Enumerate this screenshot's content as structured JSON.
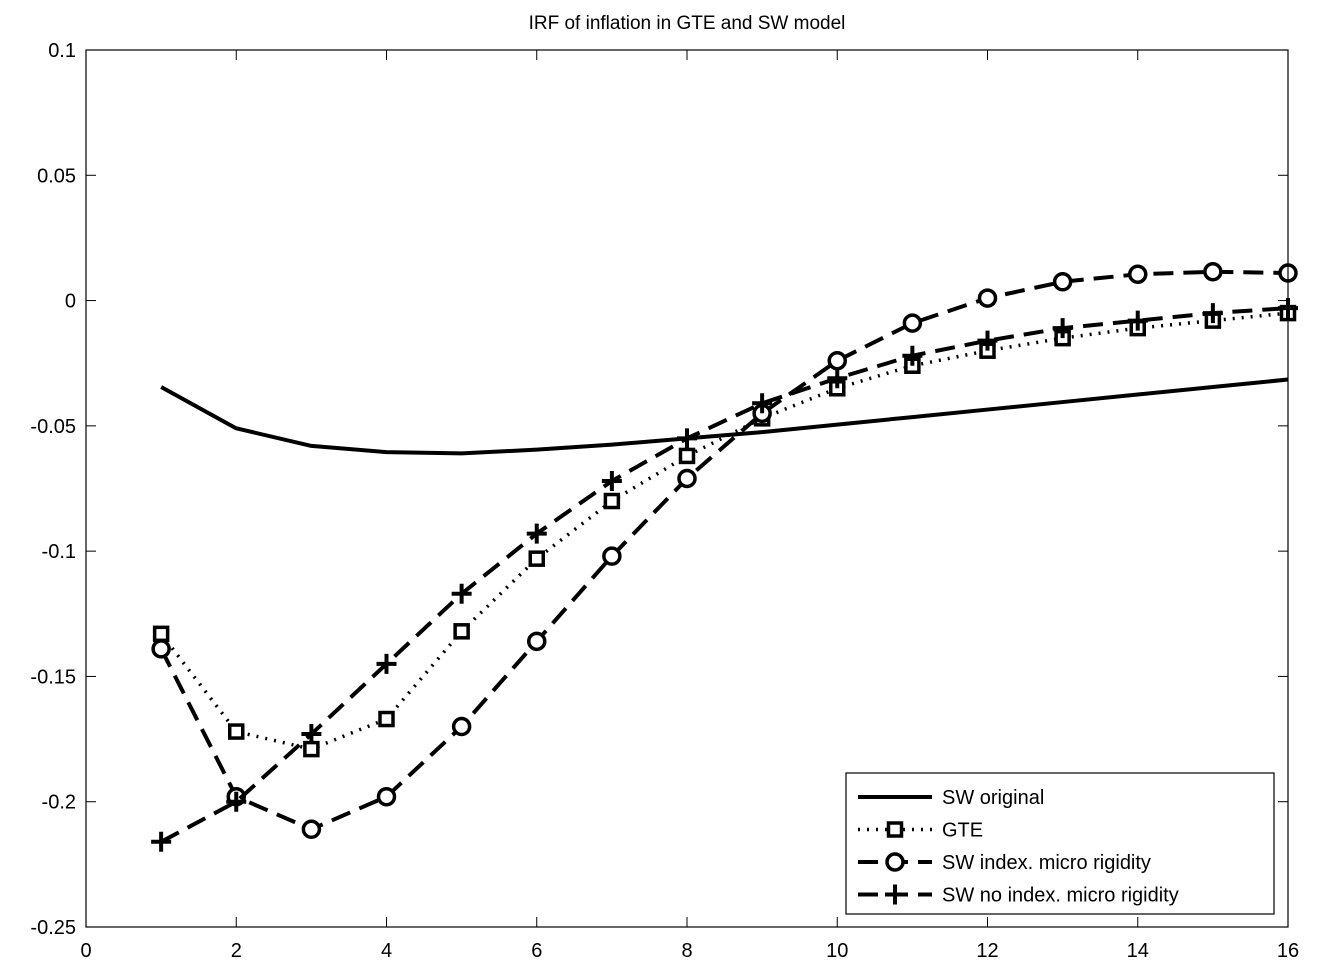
{
  "chart_data": {
    "type": "line",
    "title": "IRF of inflation in GTE and SW model",
    "xlabel": "",
    "ylabel": "",
    "xlim": [
      0,
      16
    ],
    "ylim": [
      -0.25,
      0.1
    ],
    "xticks": [
      0,
      2,
      4,
      6,
      8,
      10,
      12,
      14,
      16
    ],
    "xtick_labels": [
      "0",
      "2",
      "4",
      "6",
      "8",
      "10",
      "12",
      "14",
      "16"
    ],
    "yticks": [
      0.1,
      0.05,
      0,
      -0.05,
      -0.1,
      -0.15,
      -0.2,
      -0.25
    ],
    "ytick_labels": [
      "0.1",
      "0.05",
      "0",
      "-0.05",
      "-0.1",
      "-0.15",
      "-0.2",
      "-0.25"
    ],
    "grid": false,
    "legend_position": "bottom-right",
    "x": [
      1,
      2,
      3,
      4,
      5,
      6,
      7,
      8,
      9,
      10,
      11,
      12,
      13,
      14,
      15,
      16
    ],
    "series": [
      {
        "name": "SW original",
        "line_style": "solid",
        "marker": "none",
        "values": [
          -0.0345,
          -0.051,
          -0.058,
          -0.0605,
          -0.061,
          -0.0595,
          -0.0575,
          -0.055,
          -0.0525,
          -0.0495,
          -0.0465,
          -0.0435,
          -0.0405,
          -0.0375,
          -0.0345,
          -0.0315
        ]
      },
      {
        "name": "GTE",
        "line_style": "dotted",
        "marker": "square",
        "values": [
          -0.133,
          -0.172,
          -0.179,
          -0.167,
          -0.132,
          -0.103,
          -0.08,
          -0.062,
          -0.047,
          -0.035,
          -0.026,
          -0.02,
          -0.015,
          -0.011,
          -0.008,
          -0.005
        ]
      },
      {
        "name": "SW index. micro rigidity",
        "line_style": "dashed",
        "marker": "circle",
        "values": [
          -0.139,
          -0.198,
          -0.211,
          -0.198,
          -0.17,
          -0.136,
          -0.102,
          -0.071,
          -0.045,
          -0.024,
          -0.009,
          0.001,
          0.0075,
          0.0105,
          0.0115,
          0.011
        ]
      },
      {
        "name": "SW no index. micro rigidity",
        "line_style": "dashed",
        "marker": "plus",
        "values": [
          -0.216,
          -0.2,
          -0.173,
          -0.145,
          -0.117,
          -0.093,
          -0.072,
          -0.055,
          -0.041,
          -0.031,
          -0.022,
          -0.016,
          -0.011,
          -0.008,
          -0.005,
          -0.003
        ]
      }
    ]
  }
}
